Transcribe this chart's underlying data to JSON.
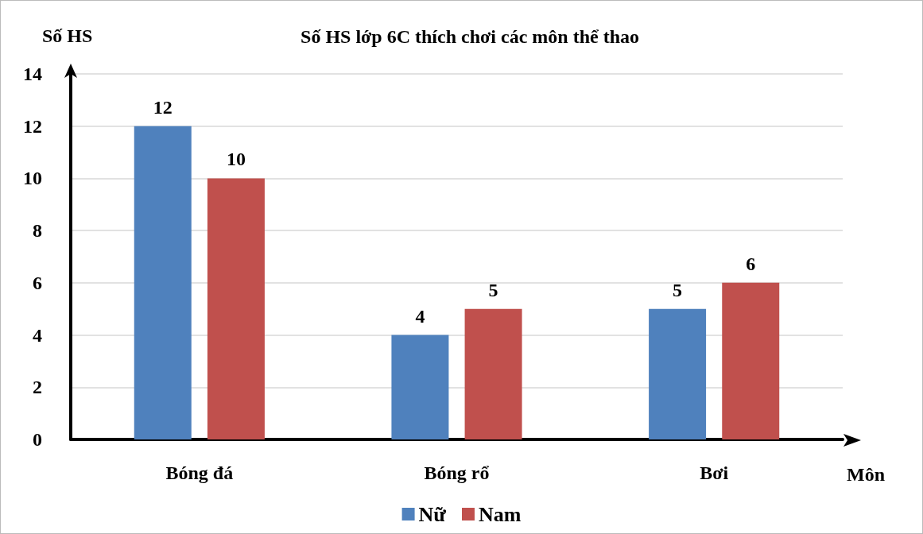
{
  "chart_data": {
    "type": "bar",
    "title": "Số HS lớp 6C thích chơi các môn thể thao",
    "xlabel": "Môn",
    "ylabel": "Số HS",
    "categories": [
      "Bóng đá",
      "Bóng rổ",
      "Bơi"
    ],
    "series": [
      {
        "name": "Nữ",
        "color": "#4f81bd",
        "values": [
          12,
          4,
          5
        ]
      },
      {
        "name": "Nam",
        "color": "#c0504d",
        "values": [
          10,
          5,
          6
        ]
      }
    ],
    "ylim": [
      0,
      14
    ],
    "yticks": [
      0,
      2,
      4,
      6,
      8,
      10,
      12,
      14
    ],
    "grid": "y",
    "legend": "bottom",
    "data_labels": true
  }
}
